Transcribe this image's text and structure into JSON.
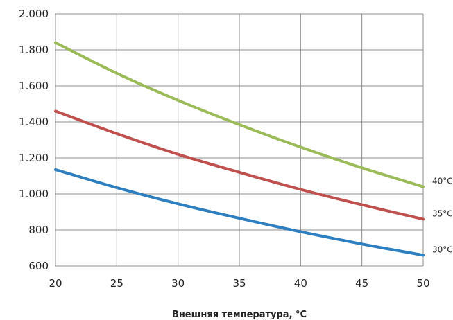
{
  "chart_data": {
    "type": "line",
    "title": "",
    "xlabel": "Внешняя температура, °C",
    "ylabel": "",
    "xlim": [
      20,
      50
    ],
    "ylim": [
      600,
      2000
    ],
    "x_ticks": [
      20,
      25,
      30,
      35,
      40,
      45,
      50
    ],
    "x_tick_labels": [
      "20",
      "25",
      "30",
      "35",
      "40",
      "45",
      "50"
    ],
    "y_ticks": [
      600,
      800,
      1000,
      1200,
      1400,
      1600,
      1800,
      2000
    ],
    "y_tick_labels": [
      "600",
      "800",
      "1.000",
      "1.200",
      "1.400",
      "1.600",
      "1.800",
      "2.000"
    ],
    "grid": true,
    "legend": "none",
    "x": [
      20,
      25,
      30,
      35,
      40,
      45,
      50
    ],
    "series": [
      {
        "name": "40°C",
        "color": "#9bbb59",
        "values": [
          1840,
          1670,
          1520,
          1385,
          1260,
          1145,
          1040
        ]
      },
      {
        "name": "35°C",
        "color": "#c0504d",
        "values": [
          1460,
          1335,
          1220,
          1120,
          1025,
          940,
          860
        ]
      },
      {
        "name": "30°C",
        "color": "#2e7fc1",
        "values": [
          1135,
          1035,
          945,
          865,
          790,
          722,
          660
        ]
      }
    ]
  }
}
